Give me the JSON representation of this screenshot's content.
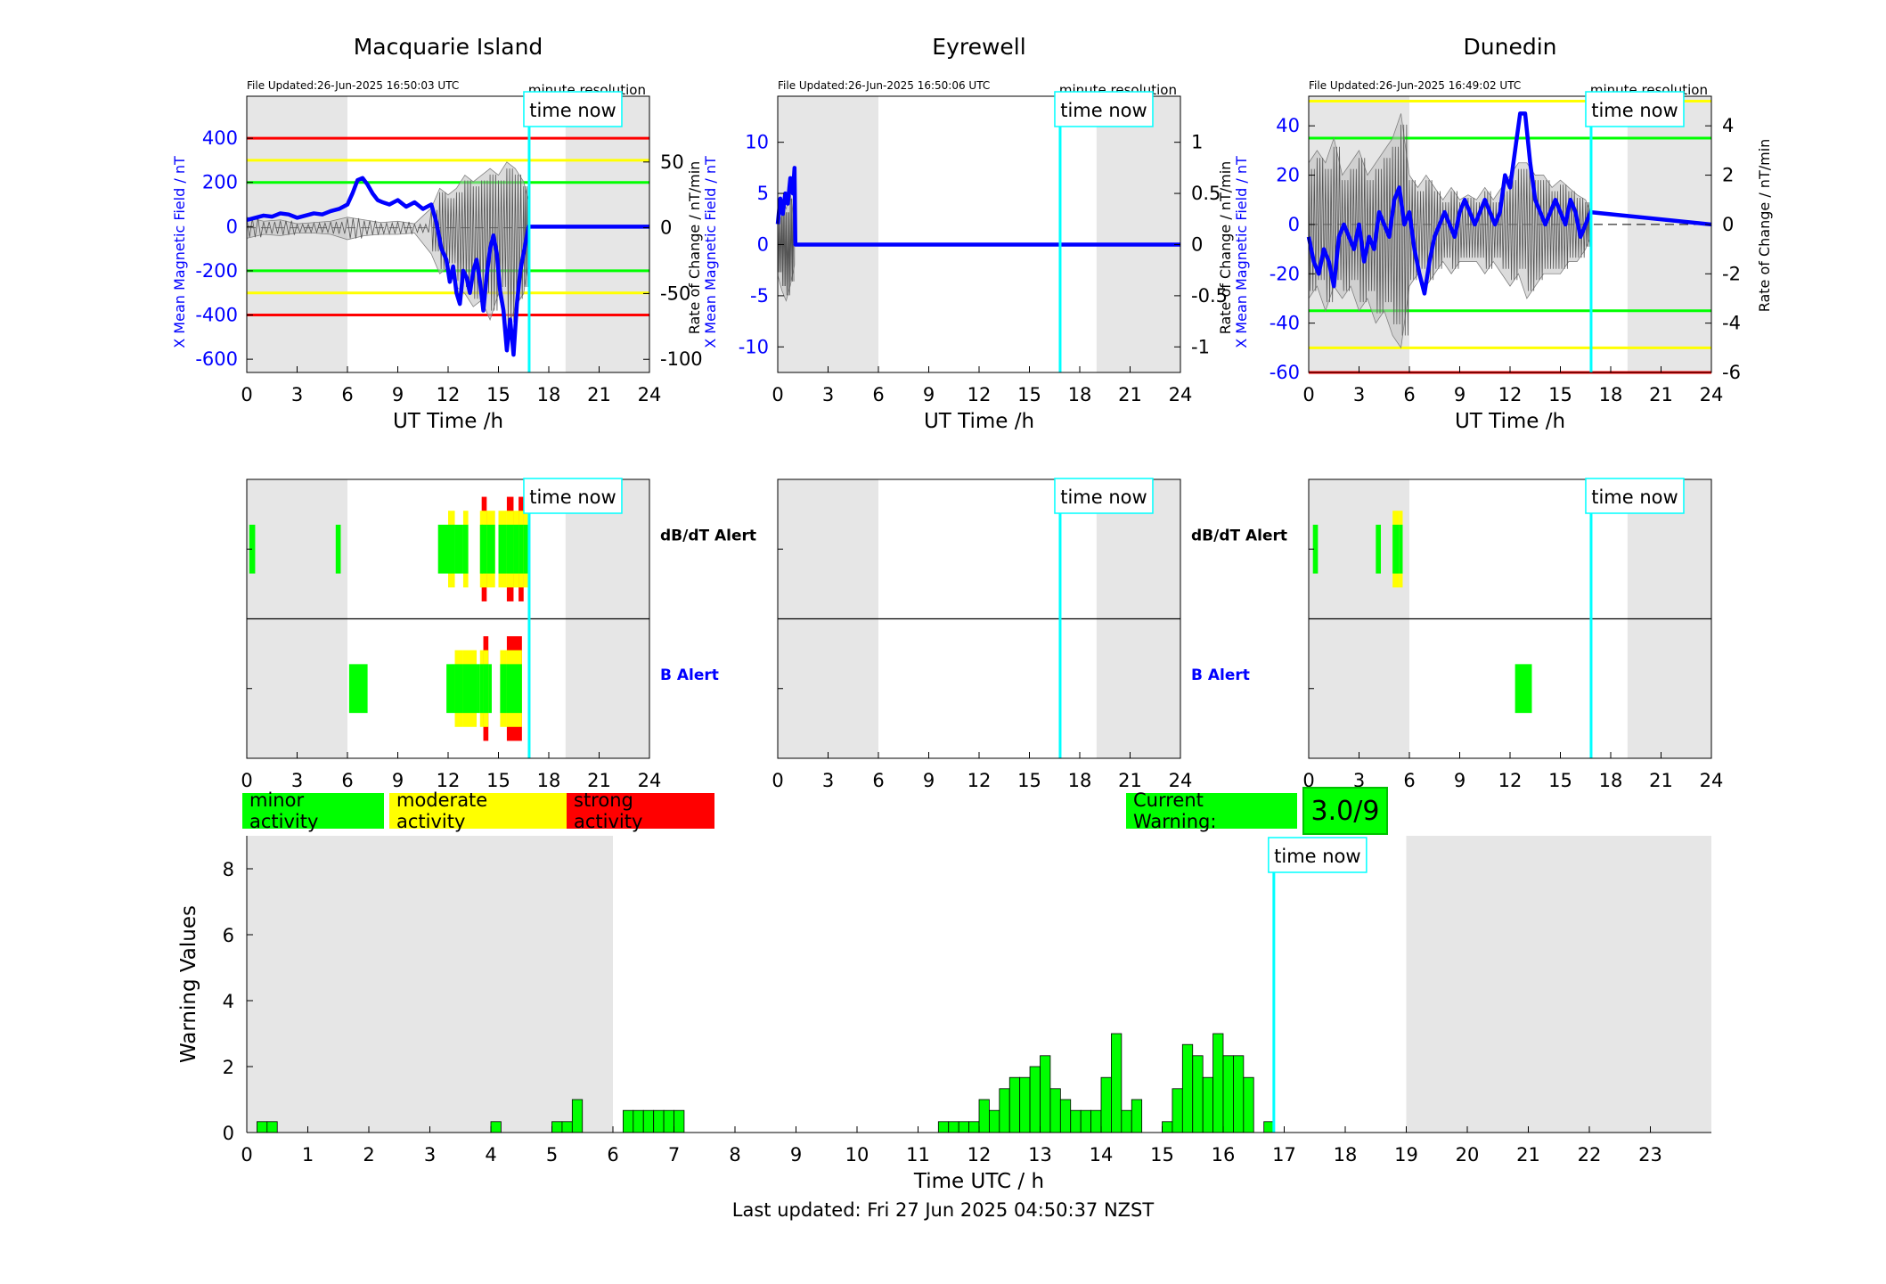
{
  "colors": {
    "field_line": "#0000ff",
    "rate_line": "#808080",
    "minor": "#00ff00",
    "moderate": "#ffff00",
    "strong": "#ff0000",
    "time_now": "#00ffff",
    "night_shade": "#e6e6e6"
  },
  "time_now_label": "time now",
  "resolution_label": "minute resolution",
  "x_label": "UT Time /h",
  "dbdt_label": "dB/dT Alert",
  "b_label": "B Alert",
  "legend": {
    "minor": "minor activity",
    "moderate": "moderate activity",
    "strong": "strong activity"
  },
  "current_warning": {
    "label": "Current Warning:",
    "value": "3.0/9"
  },
  "footer": "Last updated: Fri 27 Jun 2025 04:50:37 NZST",
  "chart_data": [
    {
      "type": "line",
      "station": "Macquarie Island",
      "title": "Macquarie Island",
      "file_updated": "File Updated:26-Jun-2025 16:50:03 UTC",
      "ylabel_left": "X Mean Magnetic Field / nT",
      "ylabel_right": "",
      "xlabel": "UT Time /h",
      "xlim": [
        0,
        24
      ],
      "x_ticks": [
        0,
        3,
        6,
        9,
        12,
        15,
        18,
        21,
        24
      ],
      "ylim_left": [
        -660,
        590
      ],
      "y_ticks_left": [
        -600,
        -400,
        -200,
        0,
        200,
        400
      ],
      "ylim_right": [
        -110,
        100
      ],
      "y_ticks_right": [
        -100,
        -50,
        0,
        50
      ],
      "time_now": 16.83,
      "night_shade": [
        [
          0,
          6
        ],
        [
          19,
          24
        ]
      ],
      "threshold_lines": [
        {
          "value": 400,
          "color": "#ff0000"
        },
        {
          "value": 300,
          "color": "#ffff00"
        },
        {
          "value": 200,
          "color": "#00ff00"
        },
        {
          "value": -200,
          "color": "#00ff00"
        },
        {
          "value": -300,
          "color": "#ffff00"
        },
        {
          "value": -400,
          "color": "#ff0000"
        }
      ],
      "field_series": {
        "x": [
          0,
          0.5,
          1,
          1.5,
          2,
          2.5,
          3,
          3.5,
          4,
          4.5,
          5,
          5.5,
          6,
          6.3,
          6.6,
          6.9,
          7.2,
          7.5,
          7.8,
          8.1,
          8.5,
          9,
          9.5,
          10,
          10.5,
          11,
          11.3,
          11.6,
          11.9,
          12.1,
          12.3,
          12.5,
          12.7,
          12.9,
          13.1,
          13.3,
          13.5,
          13.7,
          13.9,
          14.1,
          14.3,
          14.5,
          14.7,
          14.9,
          15.1,
          15.3,
          15.5,
          15.7,
          15.9,
          16.1,
          16.3,
          16.5,
          16.8,
          24
        ],
        "y": [
          30,
          40,
          50,
          45,
          60,
          55,
          40,
          50,
          60,
          55,
          70,
          80,
          100,
          150,
          210,
          220,
          190,
          150,
          120,
          110,
          100,
          120,
          90,
          110,
          80,
          100,
          20,
          -100,
          -150,
          -250,
          -180,
          -300,
          -350,
          -200,
          -230,
          -300,
          -200,
          -150,
          -250,
          -380,
          -220,
          -100,
          -40,
          -120,
          -290,
          -380,
          -560,
          -420,
          -580,
          -350,
          -200,
          -120,
          0,
          0
        ]
      },
      "rate_band": {
        "x": [
          0,
          1,
          2,
          3,
          4,
          5,
          6,
          7,
          8,
          9,
          10,
          11,
          11.5,
          12,
          12.5,
          13,
          13.5,
          14,
          14.5,
          15,
          15.5,
          16,
          16.5,
          16.8
        ],
        "upper": [
          8,
          5,
          6,
          3,
          4,
          5,
          8,
          6,
          4,
          5,
          3,
          15,
          30,
          25,
          30,
          40,
          35,
          40,
          45,
          40,
          50,
          45,
          35,
          20
        ],
        "lower": [
          -8,
          -5,
          -6,
          -4,
          -4,
          -5,
          -9,
          -6,
          -5,
          -5,
          -4,
          -20,
          -35,
          -30,
          -45,
          -50,
          -60,
          -55,
          -70,
          -50,
          -80,
          -60,
          -50,
          -25
        ]
      }
    },
    {
      "type": "line",
      "station": "Eyrewell",
      "title": "Eyrewell",
      "file_updated": "File Updated:26-Jun-2025 16:50:06 UTC",
      "ylabel_left": "X Mean Magnetic Field / nT",
      "ylabel_right": "Rate of Change / nT/min",
      "xlabel": "UT Time /h",
      "xlim": [
        0,
        24
      ],
      "x_ticks": [
        0,
        3,
        6,
        9,
        12,
        15,
        18,
        21,
        24
      ],
      "ylim_left": [
        -12.5,
        14.5
      ],
      "y_ticks_left": [
        -10,
        -5,
        0,
        5,
        10
      ],
      "ylim_right": [
        -1.25,
        1.45
      ],
      "y_ticks_right": [
        -1,
        -0.5,
        0,
        0.5,
        1
      ],
      "time_now": 16.83,
      "night_shade": [
        [
          0,
          6
        ],
        [
          19,
          24
        ]
      ],
      "threshold_lines": [],
      "field_series": {
        "x": [
          0,
          0.15,
          0.3,
          0.45,
          0.6,
          0.75,
          0.9,
          1.0,
          1.05,
          24
        ],
        "y": [
          2,
          4.5,
          3,
          5,
          4,
          6.5,
          5,
          7.5,
          0,
          0
        ]
      },
      "rate_band": {
        "x": [
          0,
          0.25,
          0.5,
          0.75,
          1.0
        ],
        "upper": [
          0.3,
          0.45,
          0.35,
          0.5,
          0.2
        ],
        "lower": [
          -0.3,
          -0.45,
          -0.55,
          -0.4,
          -0.2
        ]
      }
    },
    {
      "type": "line",
      "station": "Dunedin",
      "title": "Dunedin",
      "file_updated": "File Updated:26-Jun-2025 16:49:02 UTC",
      "ylabel_left": "X Mean Magnetic Field / nT",
      "ylabel_right": "Rate of Change / nT/min",
      "ylabel_right_outer": "Rate of Change / nT/min",
      "xlabel": "UT Time /h",
      "xlim": [
        0,
        24
      ],
      "x_ticks": [
        0,
        3,
        6,
        9,
        12,
        15,
        18,
        21,
        24
      ],
      "ylim_left": [
        -60,
        52
      ],
      "y_ticks_left": [
        -60,
        -40,
        -20,
        0,
        20,
        40
      ],
      "ylim_right": [
        -6,
        5.2
      ],
      "y_ticks_right": [
        -6,
        -4,
        -2,
        0,
        2,
        4
      ],
      "time_now": 16.83,
      "night_shade": [
        [
          0,
          6
        ],
        [
          19,
          24
        ]
      ],
      "threshold_lines": [
        {
          "value": 50,
          "color": "#ffff00"
        },
        {
          "value": 35,
          "color": "#00ff00"
        },
        {
          "value": -35,
          "color": "#00ff00"
        },
        {
          "value": -50,
          "color": "#ffff00"
        },
        {
          "value": -60,
          "color": "#ff0000"
        }
      ],
      "field_series": {
        "x": [
          0,
          0.3,
          0.6,
          0.9,
          1.2,
          1.5,
          1.8,
          2.1,
          2.4,
          2.7,
          3.0,
          3.3,
          3.6,
          3.9,
          4.2,
          4.5,
          4.8,
          5.1,
          5.4,
          5.7,
          6.0,
          6.3,
          6.6,
          6.9,
          7.2,
          7.5,
          7.8,
          8.1,
          8.4,
          8.7,
          9.0,
          9.3,
          9.6,
          9.9,
          10.2,
          10.5,
          10.8,
          11.1,
          11.4,
          11.7,
          12.0,
          12.3,
          12.6,
          12.9,
          13.2,
          13.5,
          13.8,
          14.1,
          14.4,
          14.7,
          15.0,
          15.3,
          15.6,
          15.9,
          16.2,
          16.5,
          16.8,
          24
        ],
        "y": [
          -5,
          -15,
          -20,
          -10,
          -15,
          -25,
          -5,
          0,
          -5,
          -10,
          0,
          -15,
          -5,
          -10,
          5,
          0,
          -5,
          10,
          15,
          0,
          5,
          -10,
          -20,
          -28,
          -15,
          -5,
          0,
          5,
          0,
          -5,
          5,
          10,
          5,
          0,
          5,
          10,
          5,
          0,
          5,
          20,
          15,
          30,
          45,
          45,
          25,
          10,
          5,
          0,
          5,
          10,
          5,
          0,
          10,
          5,
          -5,
          0,
          5,
          0
        ]
      },
      "rate_band": {
        "x": [
          0,
          0.5,
          1,
          1.5,
          2,
          2.5,
          3,
          3.5,
          4,
          4.5,
          5,
          5.5,
          6,
          6.5,
          7,
          7.5,
          8,
          8.5,
          9,
          9.5,
          10,
          10.5,
          11,
          11.5,
          12,
          12.5,
          13,
          13.5,
          14,
          14.5,
          15,
          15.5,
          16,
          16.5,
          16.8
        ],
        "upper": [
          2.5,
          3,
          2.5,
          3.5,
          2,
          2.5,
          3,
          2,
          2.5,
          3,
          3.5,
          4.5,
          2,
          1.5,
          2,
          1.5,
          1,
          1.5,
          1,
          1.2,
          1,
          1.5,
          1,
          1.5,
          2,
          2.5,
          2.5,
          2,
          2,
          1.5,
          1.8,
          1.5,
          1.2,
          1,
          0.5
        ],
        "lower": [
          -3,
          -2.5,
          -3.5,
          -2.5,
          -3,
          -2.5,
          -3.5,
          -3,
          -4,
          -3.5,
          -4.5,
          -5,
          -2.5,
          -2,
          -2.5,
          -2,
          -1.5,
          -2,
          -1.5,
          -1.5,
          -1.5,
          -2,
          -1.5,
          -2,
          -2.5,
          -2,
          -3,
          -2.5,
          -2,
          -2,
          -2,
          -1.5,
          -1.5,
          -1,
          -0.5
        ]
      }
    },
    {
      "type": "bar",
      "station": "Macquarie Island",
      "title": "",
      "rows": [
        "dB/dT Alert",
        "B Alert"
      ],
      "xlim": [
        0,
        24
      ],
      "x_ticks": [
        0,
        3,
        6,
        9,
        12,
        15,
        18,
        21,
        24
      ],
      "time_now": 16.83,
      "night_shade": [
        [
          0,
          6
        ],
        [
          19,
          24
        ]
      ],
      "dbdt_events": [
        {
          "start": 0.15,
          "end": 0.5,
          "level": 1
        },
        {
          "start": 5.3,
          "end": 5.6,
          "level": 1
        },
        {
          "start": 11.4,
          "end": 12.0,
          "level": 1
        },
        {
          "start": 12.0,
          "end": 12.4,
          "level": 2
        },
        {
          "start": 12.4,
          "end": 12.9,
          "level": 1
        },
        {
          "start": 12.9,
          "end": 13.2,
          "level": 2
        },
        {
          "start": 13.9,
          "end": 14.0,
          "level": 2
        },
        {
          "start": 14.0,
          "end": 14.3,
          "level": 3
        },
        {
          "start": 14.3,
          "end": 14.8,
          "level": 2
        },
        {
          "start": 15.0,
          "end": 15.5,
          "level": 2
        },
        {
          "start": 15.5,
          "end": 15.9,
          "level": 3
        },
        {
          "start": 15.9,
          "end": 16.2,
          "level": 2
        },
        {
          "start": 16.2,
          "end": 16.5,
          "level": 3
        },
        {
          "start": 16.5,
          "end": 16.75,
          "level": 2
        }
      ],
      "b_events": [
        {
          "start": 6.1,
          "end": 7.2,
          "level": 1
        },
        {
          "start": 11.9,
          "end": 12.4,
          "level": 1
        },
        {
          "start": 12.4,
          "end": 12.9,
          "level": 2
        },
        {
          "start": 12.9,
          "end": 13.7,
          "level": 2
        },
        {
          "start": 13.7,
          "end": 13.9,
          "level": 1
        },
        {
          "start": 13.9,
          "end": 14.1,
          "level": 2
        },
        {
          "start": 14.1,
          "end": 14.4,
          "level": 3
        },
        {
          "start": 14.4,
          "end": 14.6,
          "level": 1
        },
        {
          "start": 15.1,
          "end": 15.5,
          "level": 2
        },
        {
          "start": 15.5,
          "end": 16.4,
          "level": 3
        }
      ]
    },
    {
      "type": "bar",
      "station": "Eyrewell",
      "title": "",
      "rows": [
        "dB/dT Alert",
        "B Alert"
      ],
      "xlim": [
        0,
        24
      ],
      "x_ticks": [
        0,
        3,
        6,
        9,
        12,
        15,
        18,
        21,
        24
      ],
      "time_now": 16.83,
      "night_shade": [
        [
          0,
          6
        ],
        [
          19,
          24
        ]
      ],
      "dbdt_events": [],
      "b_events": []
    },
    {
      "type": "bar",
      "station": "Dunedin",
      "title": "",
      "rows": [
        "dB/dT Alert",
        "B Alert"
      ],
      "xlim": [
        0,
        24
      ],
      "x_ticks": [
        0,
        3,
        6,
        9,
        12,
        15,
        18,
        21,
        24
      ],
      "time_now": 16.83,
      "night_shade": [
        [
          0,
          6
        ],
        [
          19,
          24
        ]
      ],
      "dbdt_events": [
        {
          "start": 0.25,
          "end": 0.55,
          "level": 1
        },
        {
          "start": 4.0,
          "end": 4.3,
          "level": 1
        },
        {
          "start": 5.0,
          "end": 5.4,
          "level": 2
        },
        {
          "start": 5.4,
          "end": 5.6,
          "level": 2
        }
      ],
      "b_events": [
        {
          "start": 12.3,
          "end": 13.3,
          "level": 1
        }
      ]
    },
    {
      "type": "bar",
      "title": "",
      "xlabel": "Time UTC / h",
      "ylabel": "Warning Values",
      "xlim": [
        0,
        24
      ],
      "x_ticks": [
        0,
        1,
        2,
        3,
        4,
        5,
        6,
        7,
        8,
        9,
        10,
        11,
        12,
        13,
        14,
        15,
        16,
        17,
        18,
        19,
        20,
        21,
        22,
        23
      ],
      "ylim": [
        0,
        9
      ],
      "y_ticks": [
        0,
        2,
        4,
        6,
        8
      ],
      "time_now": 16.83,
      "night_shade": [
        [
          0,
          6
        ],
        [
          19,
          24
        ]
      ],
      "bar_width": 0.1667,
      "bar_starts": [
        0.167,
        0.333,
        4.0,
        5.0,
        5.167,
        5.333,
        6.167,
        6.333,
        6.5,
        6.667,
        6.833,
        7.0,
        11.333,
        11.5,
        11.667,
        11.833,
        12.0,
        12.167,
        12.333,
        12.5,
        12.667,
        12.833,
        13.0,
        13.167,
        13.333,
        13.5,
        13.667,
        13.833,
        14.0,
        14.167,
        14.333,
        14.5,
        15.0,
        15.167,
        15.333,
        15.5,
        15.667,
        15.833,
        16.0,
        16.167,
        16.333,
        16.667
      ],
      "values": [
        0.33,
        0.33,
        0.33,
        0.33,
        0.33,
        1.0,
        0.67,
        0.67,
        0.67,
        0.67,
        0.67,
        0.67,
        0.33,
        0.33,
        0.33,
        0.33,
        1.0,
        0.67,
        1.33,
        1.67,
        1.67,
        2.0,
        2.33,
        1.33,
        1.0,
        0.67,
        0.67,
        0.67,
        1.67,
        3.0,
        0.67,
        1.0,
        0.33,
        1.33,
        2.67,
        2.33,
        1.67,
        3.0,
        2.33,
        2.33,
        1.67,
        0.33
      ]
    }
  ]
}
